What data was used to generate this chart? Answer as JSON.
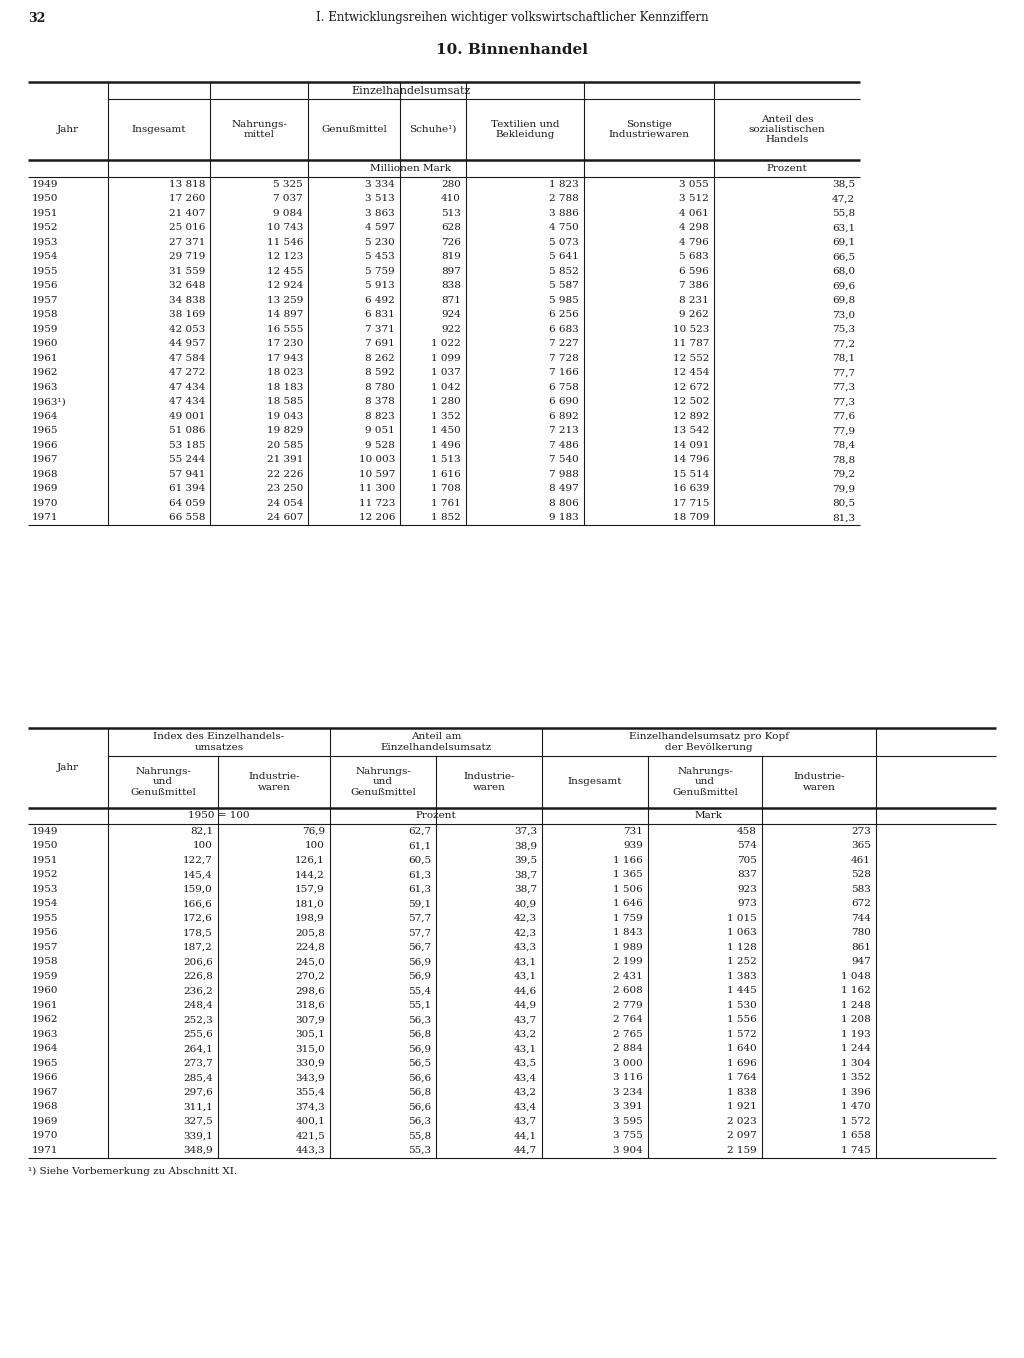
{
  "page_number": "32",
  "header_text": "I. Entwicklungsreihen wichtiger volkswirtschaftlicher Kennziffern",
  "title": "10. Binnenhandel",
  "background_color": "#ffffff",
  "text_color": "#1a1a1a",
  "table1": {
    "rows": [
      [
        "1949",
        "13 818",
        "5 325",
        "3 334",
        "280",
        "1 823",
        "3 055",
        "38,5"
      ],
      [
        "1950",
        "17 260",
        "7 037",
        "3 513",
        "410",
        "2 788",
        "3 512",
        "47,2"
      ],
      [
        "1951",
        "21 407",
        "9 084",
        "3 863",
        "513",
        "3 886",
        "4 061",
        "55,8"
      ],
      [
        "1952",
        "25 016",
        "10 743",
        "4 597",
        "628",
        "4 750",
        "4 298",
        "63,1"
      ],
      [
        "1953",
        "27 371",
        "11 546",
        "5 230",
        "726",
        "5 073",
        "4 796",
        "69,1"
      ],
      [
        "1954",
        "29 719",
        "12 123",
        "5 453",
        "819",
        "5 641",
        "5 683",
        "66,5"
      ],
      [
        "1955",
        "31 559",
        "12 455",
        "5 759",
        "897",
        "5 852",
        "6 596",
        "68,0"
      ],
      [
        "1956",
        "32 648",
        "12 924",
        "5 913",
        "838",
        "5 587",
        "7 386",
        "69,6"
      ],
      [
        "1957",
        "34 838",
        "13 259",
        "6 492",
        "871",
        "5 985",
        "8 231",
        "69,8"
      ],
      [
        "1958",
        "38 169",
        "14 897",
        "6 831",
        "924",
        "6 256",
        "9 262",
        "73,0"
      ],
      [
        "1959",
        "42 053",
        "16 555",
        "7 371",
        "922",
        "6 683",
        "10 523",
        "75,3"
      ],
      [
        "1960",
        "44 957",
        "17 230",
        "7 691",
        "1 022",
        "7 227",
        "11 787",
        "77,2"
      ],
      [
        "1961",
        "47 584",
        "17 943",
        "8 262",
        "1 099",
        "7 728",
        "12 552",
        "78,1"
      ],
      [
        "1962",
        "47 272",
        "18 023",
        "8 592",
        "1 037",
        "7 166",
        "12 454",
        "77,7"
      ],
      [
        "1963",
        "47 434",
        "18 183",
        "8 780",
        "1 042",
        "6 758",
        "12 672",
        "77,3"
      ],
      [
        "1963¹)",
        "47 434",
        "18 585",
        "8 378",
        "1 280",
        "6 690",
        "12 502",
        "77,3"
      ],
      [
        "1964",
        "49 001",
        "19 043",
        "8 823",
        "1 352",
        "6 892",
        "12 892",
        "77,6"
      ],
      [
        "1965",
        "51 086",
        "19 829",
        "9 051",
        "1 450",
        "7 213",
        "13 542",
        "77,9"
      ],
      [
        "1966",
        "53 185",
        "20 585",
        "9 528",
        "1 496",
        "7 486",
        "14 091",
        "78,4"
      ],
      [
        "1967",
        "55 244",
        "21 391",
        "10 003",
        "1 513",
        "7 540",
        "14 796",
        "78,8"
      ],
      [
        "1968",
        "57 941",
        "22 226",
        "10 597",
        "1 616",
        "7 988",
        "15 514",
        "79,2"
      ],
      [
        "1969",
        "61 394",
        "23 250",
        "11 300",
        "1 708",
        "8 497",
        "16 639",
        "79,9"
      ],
      [
        "1970",
        "64 059",
        "24 054",
        "11 723",
        "1 761",
        "8 806",
        "17 715",
        "80,5"
      ],
      [
        "1971",
        "66 558",
        "24 607",
        "12 206",
        "1 852",
        "9 183",
        "18 709",
        "81,3"
      ]
    ]
  },
  "table2": {
    "rows": [
      [
        "1949",
        "82,1",
        "76,9",
        "62,7",
        "37,3",
        "731",
        "458",
        "273"
      ],
      [
        "1950",
        "100",
        "100",
        "61,1",
        "38,9",
        "939",
        "574",
        "365"
      ],
      [
        "1951",
        "122,7",
        "126,1",
        "60,5",
        "39,5",
        "1 166",
        "705",
        "461"
      ],
      [
        "1952",
        "145,4",
        "144,2",
        "61,3",
        "38,7",
        "1 365",
        "837",
        "528"
      ],
      [
        "1953",
        "159,0",
        "157,9",
        "61,3",
        "38,7",
        "1 506",
        "923",
        "583"
      ],
      [
        "1954",
        "166,6",
        "181,0",
        "59,1",
        "40,9",
        "1 646",
        "973",
        "672"
      ],
      [
        "1955",
        "172,6",
        "198,9",
        "57,7",
        "42,3",
        "1 759",
        "1 015",
        "744"
      ],
      [
        "1956",
        "178,5",
        "205,8",
        "57,7",
        "42,3",
        "1 843",
        "1 063",
        "780"
      ],
      [
        "1957",
        "187,2",
        "224,8",
        "56,7",
        "43,3",
        "1 989",
        "1 128",
        "861"
      ],
      [
        "1958",
        "206,6",
        "245,0",
        "56,9",
        "43,1",
        "2 199",
        "1 252",
        "947"
      ],
      [
        "1959",
        "226,8",
        "270,2",
        "56,9",
        "43,1",
        "2 431",
        "1 383",
        "1 048"
      ],
      [
        "1960",
        "236,2",
        "298,6",
        "55,4",
        "44,6",
        "2 608",
        "1 445",
        "1 162"
      ],
      [
        "1961",
        "248,4",
        "318,6",
        "55,1",
        "44,9",
        "2 779",
        "1 530",
        "1 248"
      ],
      [
        "1962",
        "252,3",
        "307,9",
        "56,3",
        "43,7",
        "2 764",
        "1 556",
        "1 208"
      ],
      [
        "1963",
        "255,6",
        "305,1",
        "56,8",
        "43,2",
        "2 765",
        "1 572",
        "1 193"
      ],
      [
        "1964",
        "264,1",
        "315,0",
        "56,9",
        "43,1",
        "2 884",
        "1 640",
        "1 244"
      ],
      [
        "1965",
        "273,7",
        "330,9",
        "56,5",
        "43,5",
        "3 000",
        "1 696",
        "1 304"
      ],
      [
        "1966",
        "285,4",
        "343,9",
        "56,6",
        "43,4",
        "3 116",
        "1 764",
        "1 352"
      ],
      [
        "1967",
        "297,6",
        "355,4",
        "56,8",
        "43,2",
        "3 234",
        "1 838",
        "1 396"
      ],
      [
        "1968",
        "311,1",
        "374,3",
        "56,6",
        "43,4",
        "3 391",
        "1 921",
        "1 470"
      ],
      [
        "1969",
        "327,5",
        "400,1",
        "56,3",
        "43,7",
        "3 595",
        "2 023",
        "1 572"
      ],
      [
        "1970",
        "339,1",
        "421,5",
        "55,8",
        "44,1",
        "3 755",
        "2 097",
        "1 658"
      ],
      [
        "1971",
        "348,9",
        "443,3",
        "55,3",
        "44,7",
        "3 904",
        "2 159",
        "1 745"
      ]
    ]
  },
  "footnote": "¹) Siehe Vorbemerkung zu Abschnitt XI."
}
